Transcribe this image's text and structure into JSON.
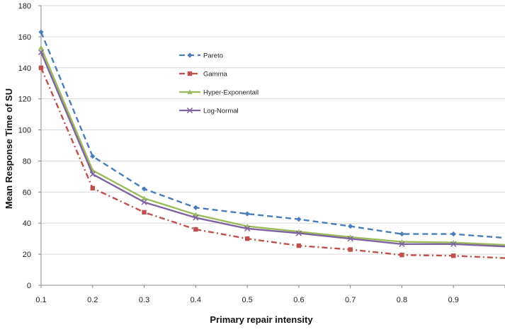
{
  "chart_data": {
    "type": "line",
    "title": "",
    "xlabel": "Primary repair intensity",
    "ylabel": "Mean Response Time of SU",
    "x": [
      0.1,
      0.2,
      0.3,
      0.4,
      0.5,
      0.6,
      0.7,
      0.8,
      0.9,
      1.0
    ],
    "x_tick_labels": [
      "0.1",
      "0.2",
      "0.3",
      "0.4",
      "0.5",
      "0.6",
      "0.7",
      "0.8",
      "0.9"
    ],
    "xlim": [
      0.1,
      1.0
    ],
    "ylim": [
      0,
      180
    ],
    "y_ticks": [
      0,
      20,
      40,
      60,
      80,
      100,
      120,
      140,
      160,
      180
    ],
    "grid": "horizontal",
    "legend_position": "inside-top-left",
    "series": [
      {
        "name": "Pareto",
        "values": [
          163,
          83,
          62,
          50,
          46,
          42.5,
          38,
          33,
          33,
          30.5
        ],
        "color": "#4a7ebb",
        "dash": "dashed",
        "marker": "diamond"
      },
      {
        "name": "Gamma",
        "values": [
          140,
          62.5,
          47,
          36,
          30,
          25.5,
          23,
          19.5,
          19,
          17.5
        ],
        "color": "#c0504d",
        "dash": "dash-dot",
        "marker": "square"
      },
      {
        "name": "Hyper-Exponentail",
        "values": [
          153,
          74,
          56,
          45.5,
          38,
          34.5,
          31,
          28,
          27.5,
          26
        ],
        "color": "#9bbb59",
        "dash": "solid",
        "marker": "triangle"
      },
      {
        "name": "Log-Normal",
        "values": [
          150,
          71.5,
          53.5,
          43.5,
          36.5,
          33.5,
          30,
          26.5,
          26.5,
          25
        ],
        "color": "#8064a2",
        "dash": "solid",
        "marker": "x"
      }
    ]
  }
}
